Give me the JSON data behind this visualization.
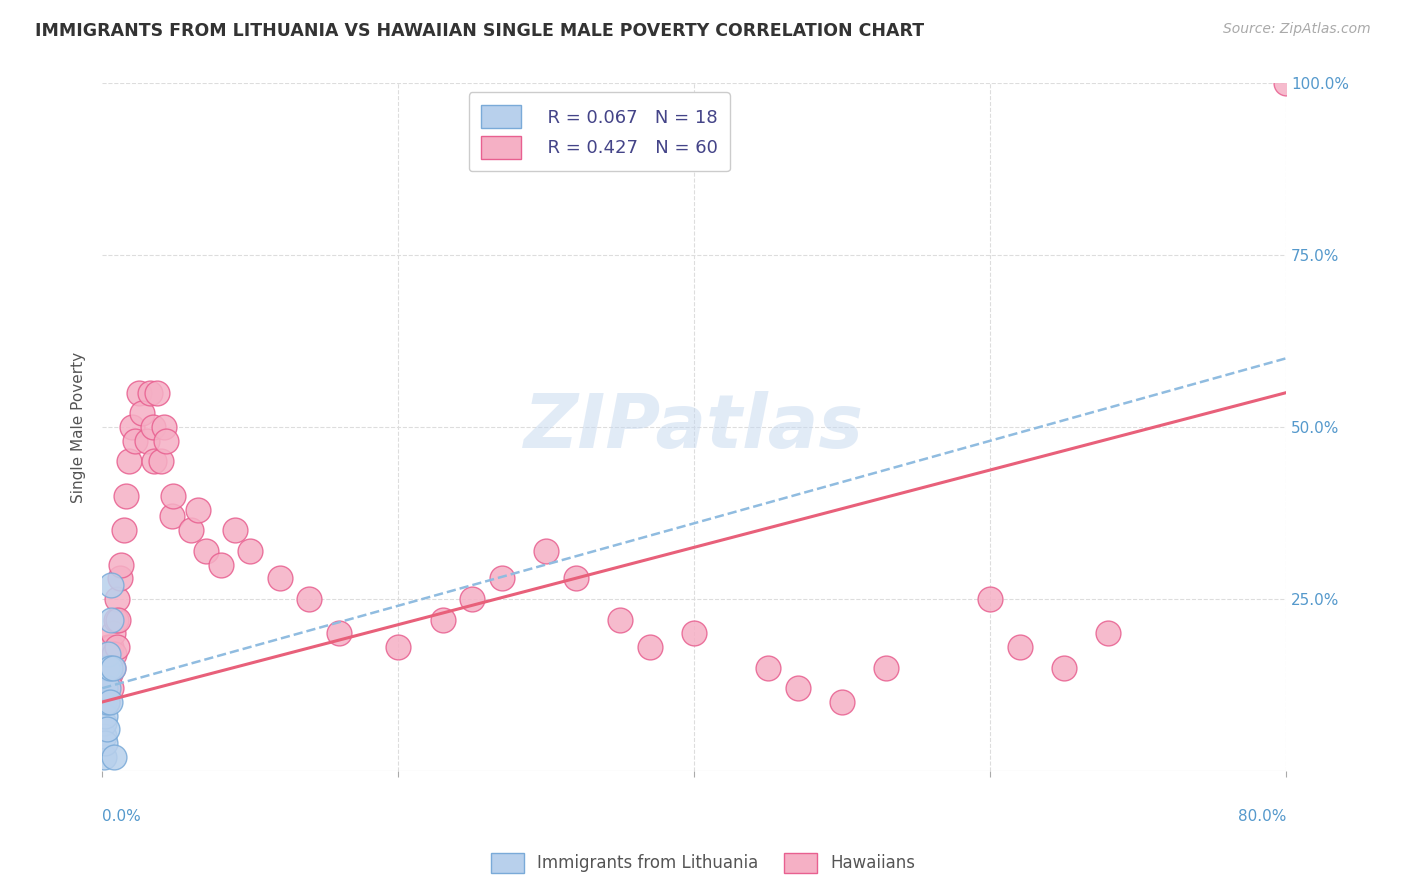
{
  "title": "IMMIGRANTS FROM LITHUANIA VS HAWAIIAN SINGLE MALE POVERTY CORRELATION CHART",
  "source": "Source: ZipAtlas.com",
  "ylabel": "Single Male Poverty",
  "bg_color": "#ffffff",
  "grid_color": "#dddddd",
  "blue_color": "#b8d0ec",
  "pink_color": "#f5b0c5",
  "blue_edge_color": "#7aaad8",
  "pink_edge_color": "#e86090",
  "blue_line_color": "#90bce0",
  "pink_line_color": "#e8607a",
  "right_tick_color": "#5599cc",
  "xlim": [
    0.0,
    0.8
  ],
  "ylim": [
    0.0,
    1.0
  ],
  "blue_pts_x": [
    0.001,
    0.001,
    0.001,
    0.001,
    0.002,
    0.002,
    0.002,
    0.003,
    0.003,
    0.003,
    0.004,
    0.004,
    0.005,
    0.005,
    0.006,
    0.006,
    0.007,
    0.008
  ],
  "blue_pts_y": [
    0.02,
    0.05,
    0.07,
    0.1,
    0.04,
    0.08,
    0.12,
    0.06,
    0.1,
    0.15,
    0.12,
    0.17,
    0.1,
    0.15,
    0.22,
    0.27,
    0.15,
    0.02
  ],
  "pink_pts_x": [
    0.002,
    0.003,
    0.003,
    0.004,
    0.005,
    0.006,
    0.006,
    0.007,
    0.007,
    0.008,
    0.009,
    0.01,
    0.01,
    0.011,
    0.012,
    0.013,
    0.015,
    0.016,
    0.018,
    0.02,
    0.022,
    0.025,
    0.027,
    0.03,
    0.032,
    0.034,
    0.035,
    0.037,
    0.04,
    0.042,
    0.043,
    0.047,
    0.048,
    0.06,
    0.065,
    0.07,
    0.08,
    0.09,
    0.1,
    0.12,
    0.14,
    0.16,
    0.2,
    0.23,
    0.25,
    0.27,
    0.3,
    0.32,
    0.35,
    0.37,
    0.4,
    0.45,
    0.47,
    0.5,
    0.53,
    0.6,
    0.62,
    0.65,
    0.68,
    0.8
  ],
  "pink_pts_y": [
    0.12,
    0.1,
    0.15,
    0.18,
    0.14,
    0.12,
    0.18,
    0.15,
    0.2,
    0.17,
    0.22,
    0.18,
    0.25,
    0.22,
    0.28,
    0.3,
    0.35,
    0.4,
    0.45,
    0.5,
    0.48,
    0.55,
    0.52,
    0.48,
    0.55,
    0.5,
    0.45,
    0.55,
    0.45,
    0.5,
    0.48,
    0.37,
    0.4,
    0.35,
    0.38,
    0.32,
    0.3,
    0.35,
    0.32,
    0.28,
    0.25,
    0.2,
    0.18,
    0.22,
    0.25,
    0.28,
    0.32,
    0.28,
    0.22,
    0.18,
    0.2,
    0.15,
    0.12,
    0.1,
    0.15,
    0.25,
    0.18,
    0.15,
    0.2,
    1.0
  ],
  "pink_line_start_x": 0.0,
  "pink_line_start_y": 0.1,
  "pink_line_end_x": 0.8,
  "pink_line_end_y": 0.55,
  "blue_line_start_x": 0.0,
  "blue_line_start_y": 0.12,
  "blue_line_end_x": 0.8,
  "blue_line_end_y": 0.6
}
